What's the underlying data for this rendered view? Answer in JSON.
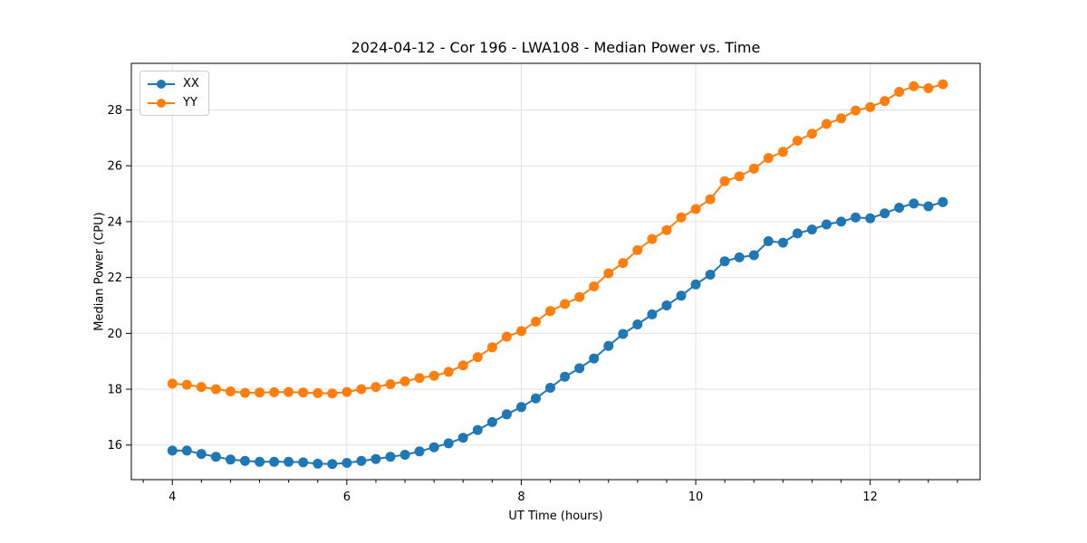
{
  "chart_data": {
    "type": "line",
    "title": "2024-04-12 - Cor 196 - LWA108 - Median Power vs. Time",
    "xlabel": "UT Time (hours)",
    "ylabel": "Median Power (CPU)",
    "xlim": [
      3.53,
      13.26
    ],
    "ylim": [
      14.76,
      29.67
    ],
    "x_ticks": [
      4,
      6,
      8,
      10,
      12
    ],
    "y_ticks": [
      16,
      18,
      20,
      22,
      24,
      26,
      28
    ],
    "x_minor_tick_step": 0.333,
    "grid": true,
    "legend_position": "upper left",
    "background": "#ffffff",
    "grid_color": "#e0e0e0",
    "spine_color": "#000000",
    "x": [
      4.0,
      4.167,
      4.333,
      4.5,
      4.667,
      4.833,
      5.0,
      5.167,
      5.333,
      5.5,
      5.667,
      5.833,
      6.0,
      6.167,
      6.333,
      6.5,
      6.667,
      6.833,
      7.0,
      7.167,
      7.333,
      7.5,
      7.667,
      7.833,
      8.0,
      8.167,
      8.333,
      8.5,
      8.667,
      8.833,
      9.0,
      9.167,
      9.333,
      9.5,
      9.667,
      9.833,
      10.0,
      10.167,
      10.333,
      10.5,
      10.667,
      10.833,
      11.0,
      11.167,
      11.333,
      11.5,
      11.667,
      11.833,
      12.0,
      12.167,
      12.333,
      12.5,
      12.667,
      12.833
    ],
    "series": [
      {
        "name": "XX",
        "color": "#1f77b4",
        "values": [
          15.8,
          15.8,
          15.68,
          15.58,
          15.48,
          15.43,
          15.4,
          15.4,
          15.4,
          15.38,
          15.33,
          15.32,
          15.36,
          15.43,
          15.5,
          15.58,
          15.65,
          15.77,
          15.92,
          16.06,
          16.26,
          16.54,
          16.82,
          17.1,
          17.36,
          17.67,
          18.05,
          18.45,
          18.75,
          19.1,
          19.55,
          19.98,
          20.32,
          20.68,
          21.0,
          21.35,
          21.75,
          22.1,
          22.58,
          22.72,
          22.8,
          23.3,
          23.25,
          23.58,
          23.72,
          23.9,
          24.0,
          24.15,
          24.12,
          24.3,
          24.5,
          24.65,
          24.55,
          24.7
        ]
      },
      {
        "name": "YY",
        "color": "#ff7f0e",
        "values": [
          18.2,
          18.16,
          18.08,
          18.0,
          17.92,
          17.87,
          17.88,
          17.89,
          17.9,
          17.88,
          17.86,
          17.85,
          17.9,
          18.0,
          18.08,
          18.18,
          18.28,
          18.4,
          18.48,
          18.62,
          18.85,
          19.15,
          19.5,
          19.88,
          20.08,
          20.42,
          20.8,
          21.05,
          21.3,
          21.68,
          22.15,
          22.52,
          22.98,
          23.38,
          23.7,
          24.15,
          24.45,
          24.8,
          25.45,
          25.62,
          25.9,
          26.28,
          26.5,
          26.9,
          27.15,
          27.5,
          27.7,
          27.98,
          28.1,
          28.32,
          28.65,
          28.85,
          28.78,
          28.92
        ]
      }
    ]
  }
}
